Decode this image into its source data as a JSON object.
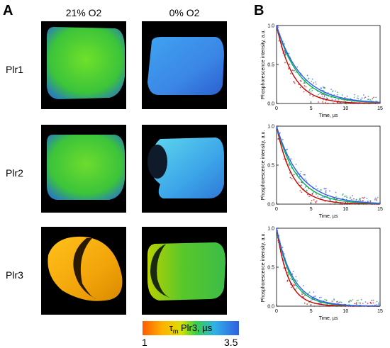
{
  "panels": {
    "a_label": "A",
    "b_label": "B"
  },
  "columns": [
    "21% O2",
    "0% O2"
  ],
  "rows": [
    "Plr1",
    "Plr2",
    "Plr3"
  ],
  "colorbar": {
    "label_prefix": "τ",
    "label_sub": "m",
    "label_suffix": " Plr3, µs",
    "min": "1",
    "max": "3.5"
  },
  "chart_data": [
    {
      "type": "scatter",
      "title": "",
      "xlabel": "Time, µs",
      "ylabel": "Phosphorescence intensity, a.u.",
      "xlim": [
        0,
        15
      ],
      "ylim": [
        0,
        1.0
      ],
      "xticks": [
        "0",
        "5",
        "10",
        "15"
      ],
      "yticks": [
        "0.0",
        "0.5",
        "1.0"
      ],
      "series": [
        {
          "color": "#cc0000",
          "tau": 2.4
        },
        {
          "color": "#00b050",
          "tau": 3.3
        },
        {
          "color": "#3355ff",
          "tau": 3.6
        }
      ]
    },
    {
      "type": "scatter",
      "title": "",
      "xlabel": "Time, µs",
      "ylabel": "Phosphorescence intensity, a.u.",
      "xlim": [
        0,
        15
      ],
      "ylim": [
        0,
        1.0
      ],
      "xticks": [
        "0",
        "5",
        "10",
        "15"
      ],
      "yticks": [
        "0.0",
        "0.5",
        "1.0"
      ],
      "series": [
        {
          "color": "#cc0000",
          "tau": 2.3
        },
        {
          "color": "#00b050",
          "tau": 3.0
        },
        {
          "color": "#3355ff",
          "tau": 3.4
        }
      ]
    },
    {
      "type": "scatter",
      "title": "",
      "xlabel": "Time, µs",
      "ylabel": "Phosphorescence intensity, a.u.",
      "xlim": [
        0,
        15
      ],
      "ylim": [
        0,
        1.0
      ],
      "xticks": [
        "0",
        "5",
        "10",
        "15"
      ],
      "yticks": [
        "0.0",
        "0.5",
        "1.0"
      ],
      "series": [
        {
          "color": "#cc0000",
          "tau": 1.7
        },
        {
          "color": "#00b050",
          "tau": 2.2
        },
        {
          "color": "#3355ff",
          "tau": 2.4
        }
      ]
    }
  ]
}
